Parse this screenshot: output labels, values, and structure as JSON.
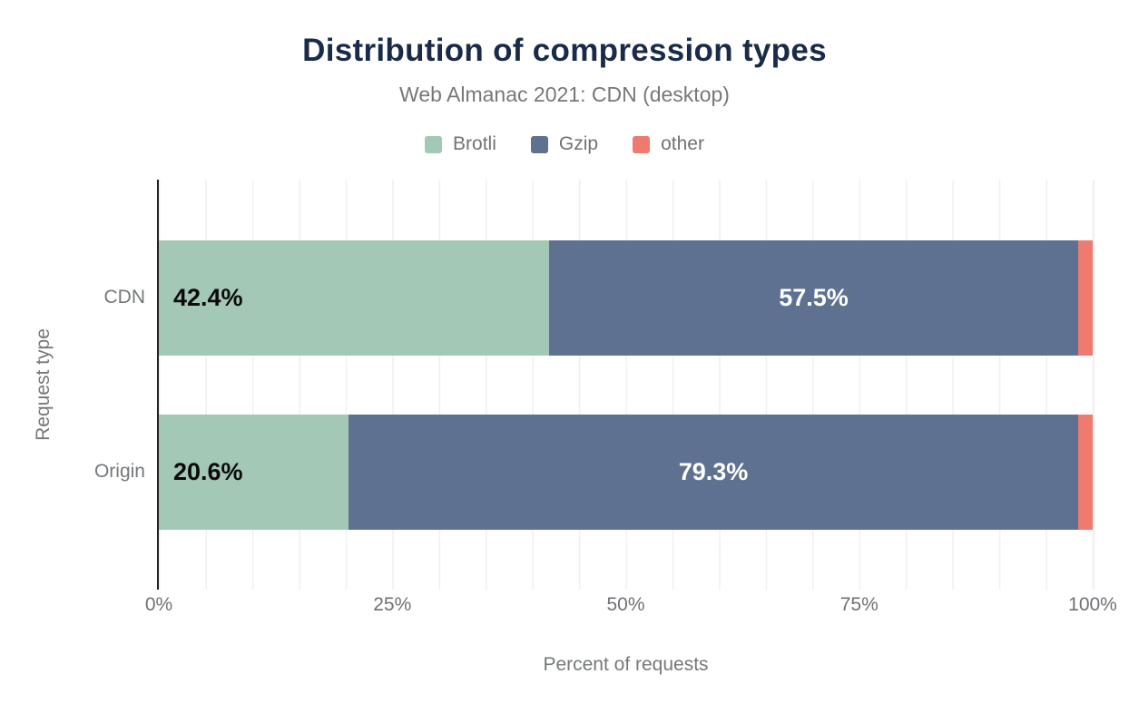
{
  "chart_data": {
    "type": "bar",
    "orientation": "horizontal",
    "stacked": true,
    "title": "Distribution of compression types",
    "subtitle": "Web Almanac 2021: CDN (desktop)",
    "xlabel": "Percent of requests",
    "ylabel": "Request type",
    "categories": [
      "CDN",
      "Origin"
    ],
    "series": [
      {
        "name": "Brotli",
        "color": "#a4c8b6",
        "values": [
          42.4,
          20.6
        ],
        "labels": [
          "42.4%",
          "20.6%"
        ],
        "label_color": "#0b0b0b",
        "label_align": "left"
      },
      {
        "name": "Gzip",
        "color": "#5f7190",
        "values": [
          57.5,
          79.3
        ],
        "labels": [
          "57.5%",
          "79.3%"
        ],
        "label_color": "#ffffff",
        "label_align": "center"
      },
      {
        "name": "other",
        "color": "#ee7a70",
        "values": [
          0.1,
          0.1
        ],
        "labels": [
          "",
          ""
        ],
        "label_color": "#0b0b0b",
        "label_align": "left"
      }
    ],
    "x_ticks": [
      "0%",
      "25%",
      "50%",
      "75%",
      "100%"
    ],
    "xlim": [
      0,
      100
    ],
    "grid": "vertical gridlines every 5%",
    "legend_position": "top"
  },
  "colors": {
    "title_text": "#1a2b49",
    "secondary_text": "#75787b",
    "axis_line": "#212121",
    "gridline": "#f0f0f0",
    "background": "#ffffff"
  }
}
